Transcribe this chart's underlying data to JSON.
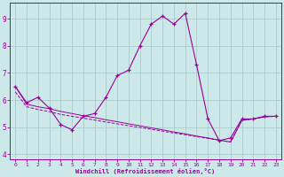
{
  "xlabel": "Windchill (Refroidissement éolien,°C)",
  "bg_color": "#cce8e8",
  "grid_color": "#aacccc",
  "line_color": "#990099",
  "hours": [
    0,
    1,
    2,
    3,
    4,
    5,
    6,
    7,
    8,
    9,
    10,
    11,
    12,
    13,
    14,
    15,
    16,
    17,
    18,
    19,
    20,
    21,
    22,
    23
  ],
  "windchill": [
    6.5,
    5.9,
    6.1,
    5.7,
    5.1,
    4.9,
    5.4,
    5.5,
    6.1,
    6.9,
    7.1,
    8.0,
    8.8,
    9.1,
    8.8,
    9.2,
    7.3,
    5.3,
    4.5,
    4.6,
    5.3,
    5.3,
    5.4,
    5.4
  ],
  "temp_line1": [
    6.5,
    5.85,
    5.75,
    5.68,
    5.58,
    5.5,
    5.42,
    5.35,
    5.27,
    5.2,
    5.12,
    5.05,
    4.97,
    4.9,
    4.82,
    4.75,
    4.67,
    4.6,
    4.52,
    4.45,
    5.25,
    5.3,
    5.38,
    5.4
  ],
  "temp_line2": [
    6.3,
    5.75,
    5.65,
    5.57,
    5.47,
    5.4,
    5.33,
    5.26,
    5.19,
    5.12,
    5.05,
    4.99,
    4.92,
    4.85,
    4.78,
    4.72,
    4.65,
    4.58,
    4.52,
    4.45,
    5.25,
    5.3,
    5.38,
    5.4
  ],
  "ylim": [
    3.8,
    9.6
  ],
  "xlim": [
    -0.5,
    23.5
  ],
  "yticks": [
    4,
    5,
    6,
    7,
    8,
    9
  ],
  "xticks": [
    0,
    1,
    2,
    3,
    4,
    5,
    6,
    7,
    8,
    9,
    10,
    11,
    12,
    13,
    14,
    15,
    16,
    17,
    18,
    19,
    20,
    21,
    22,
    23
  ]
}
